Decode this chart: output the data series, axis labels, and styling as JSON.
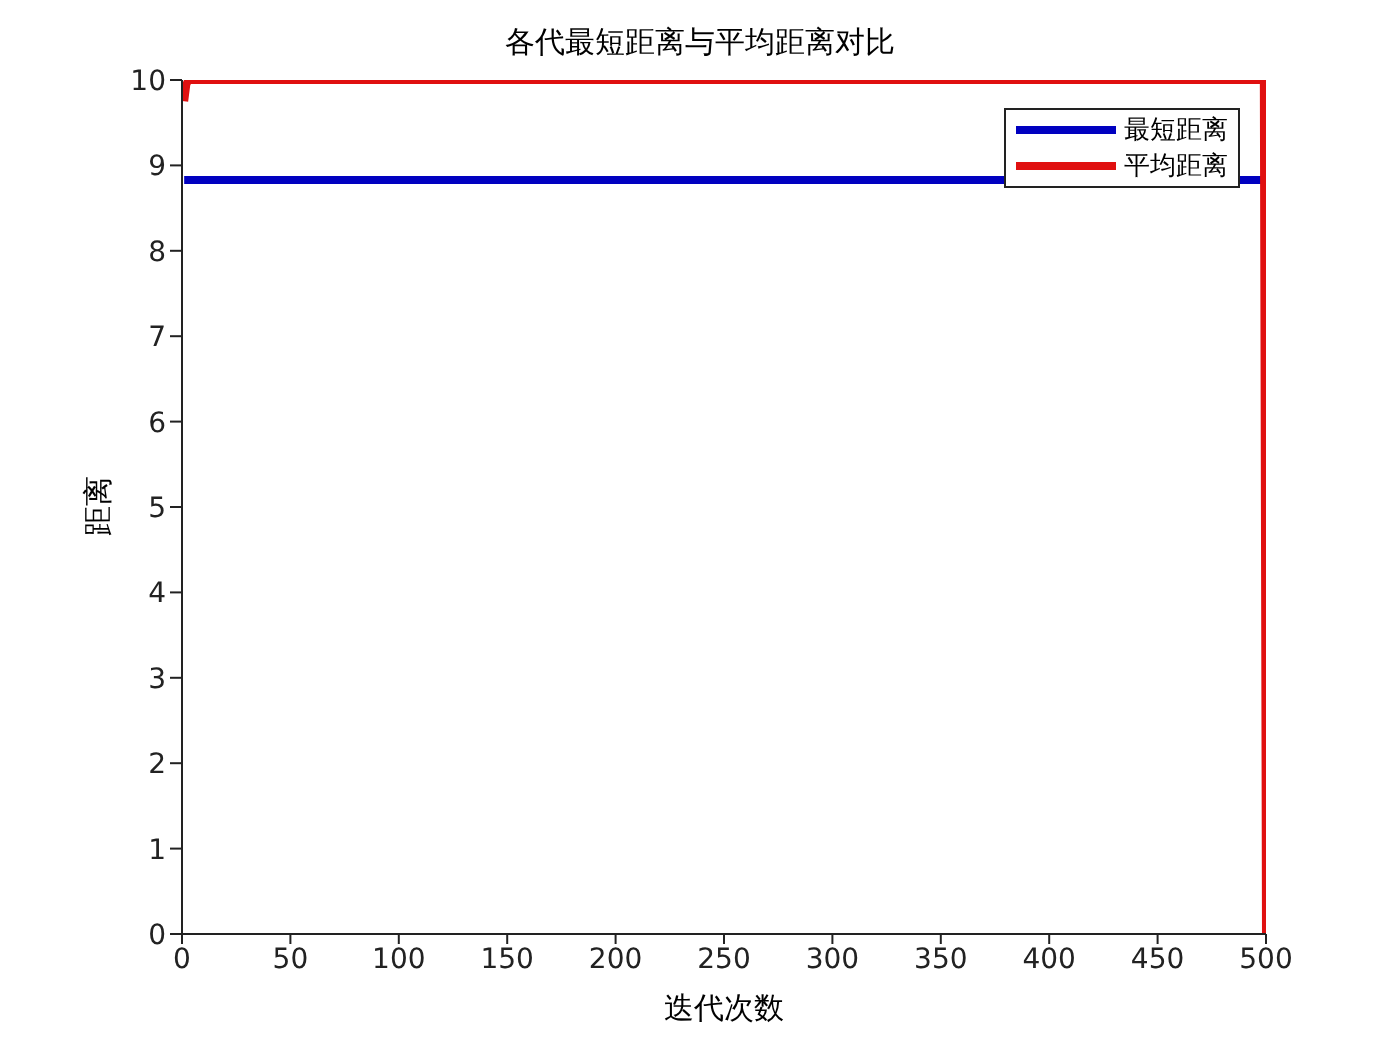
{
  "chart_data": {
    "type": "line",
    "title": "各代最短距离与平均距离对比",
    "xlabel": "迭代次数",
    "ylabel": "距离",
    "series": [
      {
        "name": "最短距离",
        "color": "#0000c0",
        "x": [
          1,
          500
        ],
        "values": [
          8.83,
          8.83
        ]
      },
      {
        "name": "平均距离",
        "color": "#e01010",
        "x": [
          1,
          2,
          3,
          499,
          500
        ],
        "values": [
          9.75,
          9.95,
          10,
          10,
          0
        ]
      }
    ],
    "xlim": [
      0,
      500
    ],
    "xticks": [
      0,
      50,
      100,
      150,
      200,
      250,
      300,
      350,
      400,
      450,
      500
    ],
    "ylim": [
      0,
      10
    ],
    "yticks": [
      0,
      1,
      2,
      3,
      4,
      5,
      6,
      7,
      8,
      9,
      10
    ],
    "grid": false,
    "legend": "top right",
    "marker": "none",
    "line_style": "solid"
  }
}
